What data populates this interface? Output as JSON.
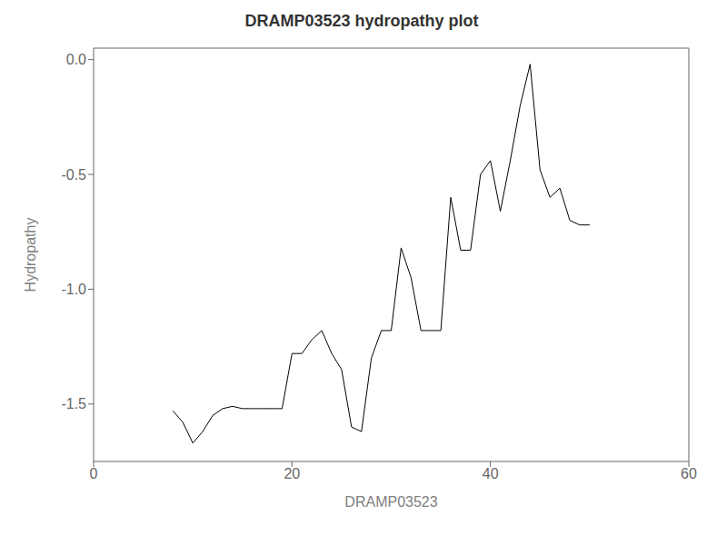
{
  "chart_data": {
    "type": "line",
    "title": "DRAMP03523 hydropathy plot",
    "xlabel": "DRAMP03523",
    "ylabel": "Hydropathy",
    "xlim": [
      0,
      60
    ],
    "ylim": [
      -1.75,
      0.05
    ],
    "xticks": [
      0,
      20,
      40,
      60
    ],
    "yticks": [
      {
        "value": 0.0,
        "label": "0.0"
      },
      {
        "value": -0.5,
        "label": "-0.5"
      },
      {
        "value": -1.0,
        "label": "-1.0"
      },
      {
        "value": -1.5,
        "label": "-1.5"
      }
    ],
    "color": "#000000",
    "grid": false,
    "x": [
      8,
      9,
      10,
      11,
      12,
      13,
      14,
      15,
      16,
      17,
      18,
      19,
      20,
      21,
      22,
      23,
      24,
      25,
      26,
      27,
      28,
      29,
      30,
      31,
      32,
      33,
      34,
      35,
      36,
      37,
      38,
      39,
      40,
      41,
      42,
      43,
      44,
      45,
      46,
      47,
      48,
      49,
      50
    ],
    "values": [
      -1.53,
      -1.58,
      -1.67,
      -1.62,
      -1.55,
      -1.52,
      -1.51,
      -1.52,
      -1.52,
      -1.52,
      -1.52,
      -1.52,
      -1.28,
      -1.28,
      -1.22,
      -1.18,
      -1.28,
      -1.35,
      -1.6,
      -1.62,
      -1.3,
      -1.18,
      -1.18,
      -0.82,
      -0.95,
      -1.18,
      -1.18,
      -1.18,
      -0.6,
      -0.83,
      -0.83,
      -0.5,
      -0.44,
      -0.66,
      -0.44,
      -0.2,
      -0.02,
      -0.48,
      -0.6,
      -0.56,
      -0.7,
      -0.72,
      -0.72
    ]
  }
}
